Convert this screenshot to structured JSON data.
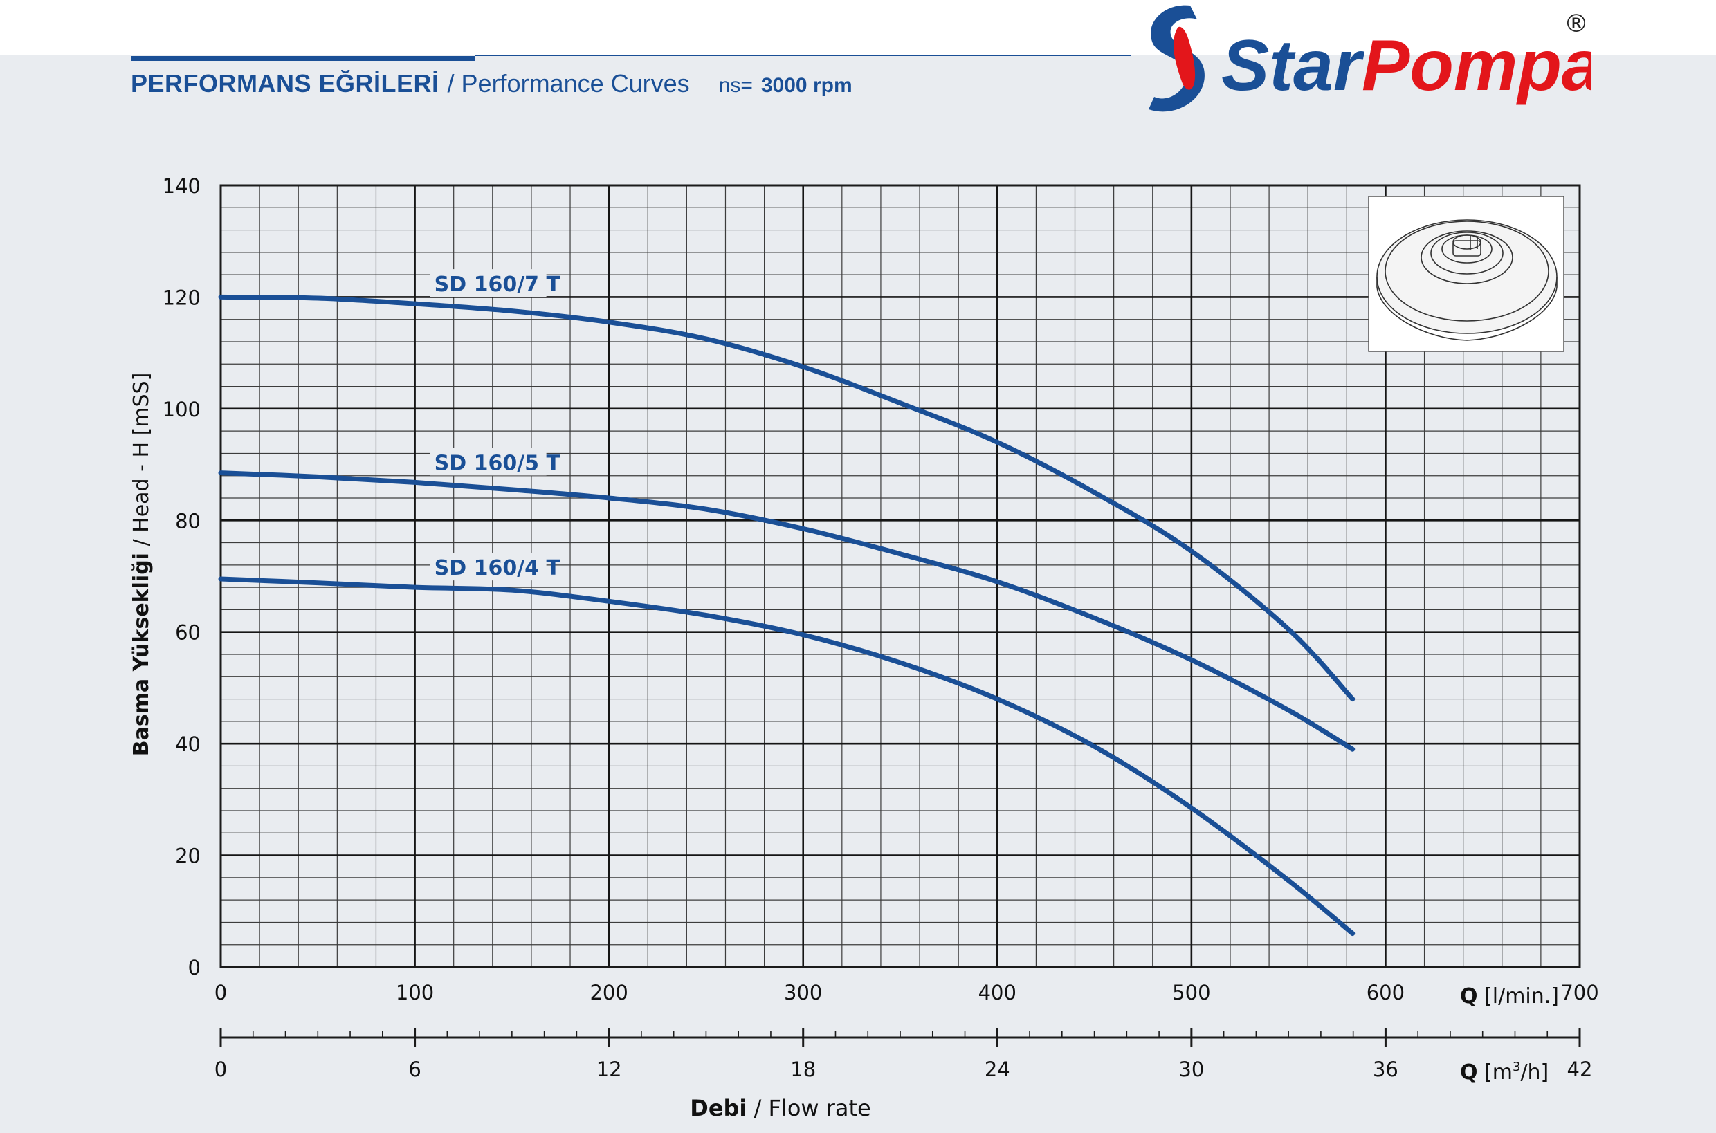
{
  "header": {
    "title_tr": "PERFORMANS EĞRİLERİ",
    "title_en": "/ Performance Curves",
    "ns_label": "ns=",
    "rpm_value": "3000 rpm"
  },
  "brand": {
    "name_part1": "Star",
    "name_part2": "Pompa",
    "registered": "®",
    "colors": {
      "blue": "#1a4f96",
      "red": "#e3161b"
    }
  },
  "chart_data": {
    "type": "line",
    "ylabel_bold": "Basma Yüksekliği",
    "ylabel_rest": " / Head - H [mSS]",
    "xlabel_bold": "Debi",
    "xlabel_rest": " / Flow rate",
    "x_axis_primary": {
      "unit_bold": "Q",
      "unit_rest": " [l/min.]",
      "range": [
        0,
        700
      ],
      "ticks": [
        0,
        100,
        200,
        300,
        400,
        500,
        600,
        700
      ]
    },
    "x_axis_secondary": {
      "unit_bold": "Q",
      "unit_rest": " [m",
      "unit_sup": "3",
      "unit_end": "/h]",
      "range": [
        0,
        42
      ],
      "ticks": [
        0,
        6,
        12,
        18,
        24,
        30,
        36,
        42
      ]
    },
    "y_axis": {
      "range": [
        0,
        140
      ],
      "ticks": [
        0,
        20,
        40,
        60,
        80,
        100,
        120,
        140
      ]
    },
    "grid": true,
    "line_color": "#1a4f96",
    "series": [
      {
        "name": "SD 160/7 T",
        "points": [
          [
            0,
            120
          ],
          [
            50,
            119.8
          ],
          [
            100,
            118.8
          ],
          [
            150,
            117.5
          ],
          [
            200,
            115.5
          ],
          [
            250,
            112.5
          ],
          [
            300,
            107.5
          ],
          [
            350,
            101
          ],
          [
            400,
            94
          ],
          [
            450,
            85
          ],
          [
            500,
            74.5
          ],
          [
            550,
            60.5
          ],
          [
            583,
            48
          ]
        ]
      },
      {
        "name": "SD 160/5 T",
        "points": [
          [
            0,
            88.5
          ],
          [
            50,
            87.8
          ],
          [
            100,
            86.8
          ],
          [
            150,
            85.5
          ],
          [
            200,
            84
          ],
          [
            250,
            82
          ],
          [
            300,
            78.5
          ],
          [
            350,
            74
          ],
          [
            400,
            69
          ],
          [
            450,
            62.5
          ],
          [
            500,
            55
          ],
          [
            550,
            46
          ],
          [
            583,
            39
          ]
        ]
      },
      {
        "name": "SD 160/4 T",
        "points": [
          [
            0,
            69.5
          ],
          [
            50,
            68.8
          ],
          [
            100,
            68
          ],
          [
            150,
            67.5
          ],
          [
            200,
            65.5
          ],
          [
            250,
            63
          ],
          [
            300,
            59.5
          ],
          [
            350,
            54.5
          ],
          [
            400,
            48
          ],
          [
            450,
            39.5
          ],
          [
            500,
            28.5
          ],
          [
            550,
            15.5
          ],
          [
            583,
            6
          ]
        ]
      }
    ]
  }
}
